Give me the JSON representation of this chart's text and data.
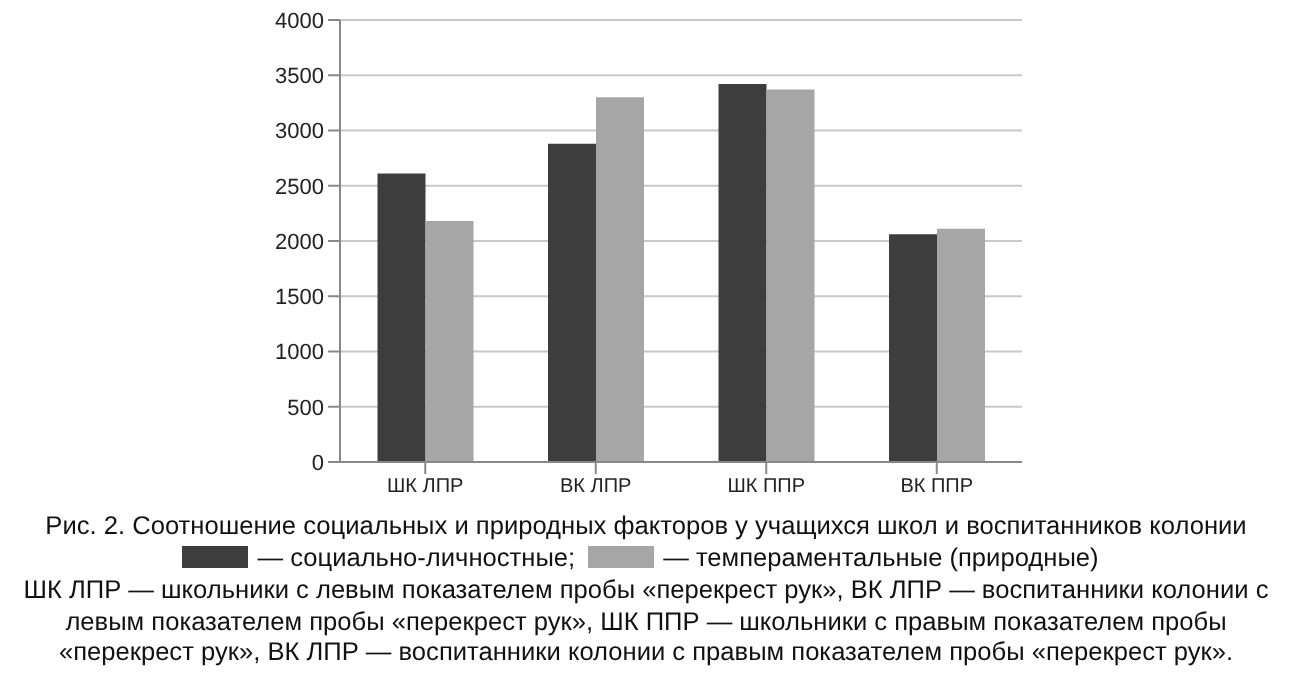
{
  "chart_data": {
    "type": "bar",
    "title": "Рис. 2. Соотношение социальных и природных факторов у учащихся школ и воспитанников колонии",
    "categories": [
      "ШК ЛПР",
      "ВК ЛПР",
      "ШК ППР",
      "ВК ППР"
    ],
    "series": [
      {
        "name": "— социально-личностные;",
        "color": "#3d3d3d",
        "values": [
          2610,
          2880,
          3420,
          2060
        ]
      },
      {
        "name": "— темпераментальные (природные)",
        "color": "#a6a6a6",
        "values": [
          2180,
          3300,
          3370,
          2110
        ]
      }
    ],
    "ylim": [
      0,
      4000
    ],
    "yticks": [
      0,
      500,
      1000,
      1500,
      2000,
      2500,
      3000,
      3500,
      4000
    ],
    "grid": "y",
    "legend": "bottom",
    "annotations": [
      "ШК ЛПР — школьники с левым показателем пробы «перекрест рук», ВК ЛПР — воспитанники колонии с левым показателем пробы «перекрест рук», ШК ППР — школьники с правым показателем пробы «перекрест рук», ВК ЛПР — воспитанники колонии с правым показателем пробы «перекрест рук»."
    ]
  }
}
